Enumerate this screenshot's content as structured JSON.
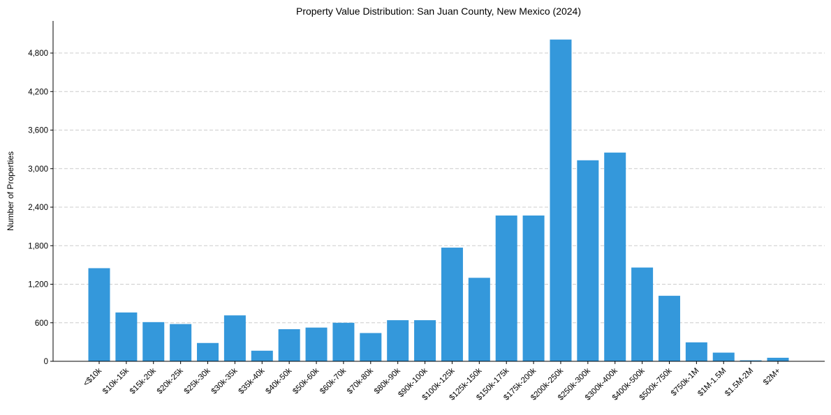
{
  "chart_data": {
    "type": "bar",
    "title": "Property Value Distribution: San Juan County, New Mexico (2024)",
    "xlabel": "",
    "ylabel": "Number of Properties",
    "ylim": [
      0,
      5300
    ],
    "yticks": [
      0,
      600,
      1200,
      1800,
      2400,
      3000,
      3600,
      4200,
      4800
    ],
    "ytick_labels": [
      "0",
      "600",
      "1,200",
      "1,800",
      "2,400",
      "3,000",
      "3,600",
      "4,200",
      "4,800"
    ],
    "grid": "horizontal dashed",
    "legend": "none",
    "bar_color": "#3498db",
    "categories": [
      "<$10k",
      "$10k-15k",
      "$15k-20k",
      "$20k-25k",
      "$25k-30k",
      "$30k-35k",
      "$35k-40k",
      "$40k-50k",
      "$50k-60k",
      "$60k-70k",
      "$70k-80k",
      "$80k-90k",
      "$90k-100k",
      "$100k-125k",
      "$125k-150k",
      "$150k-175k",
      "$175k-200k",
      "$200k-250k",
      "$250k-300k",
      "$300k-400k",
      "$400k-500k",
      "$500k-750k",
      "$750k-1M",
      "$1M-1.5M",
      "$1.5M-2M",
      "$2M+"
    ],
    "values": [
      1450,
      760,
      610,
      580,
      285,
      715,
      165,
      500,
      525,
      600,
      440,
      640,
      640,
      1770,
      1300,
      2270,
      2270,
      5010,
      3130,
      3250,
      1460,
      1020,
      295,
      135,
      15,
      55
    ]
  }
}
